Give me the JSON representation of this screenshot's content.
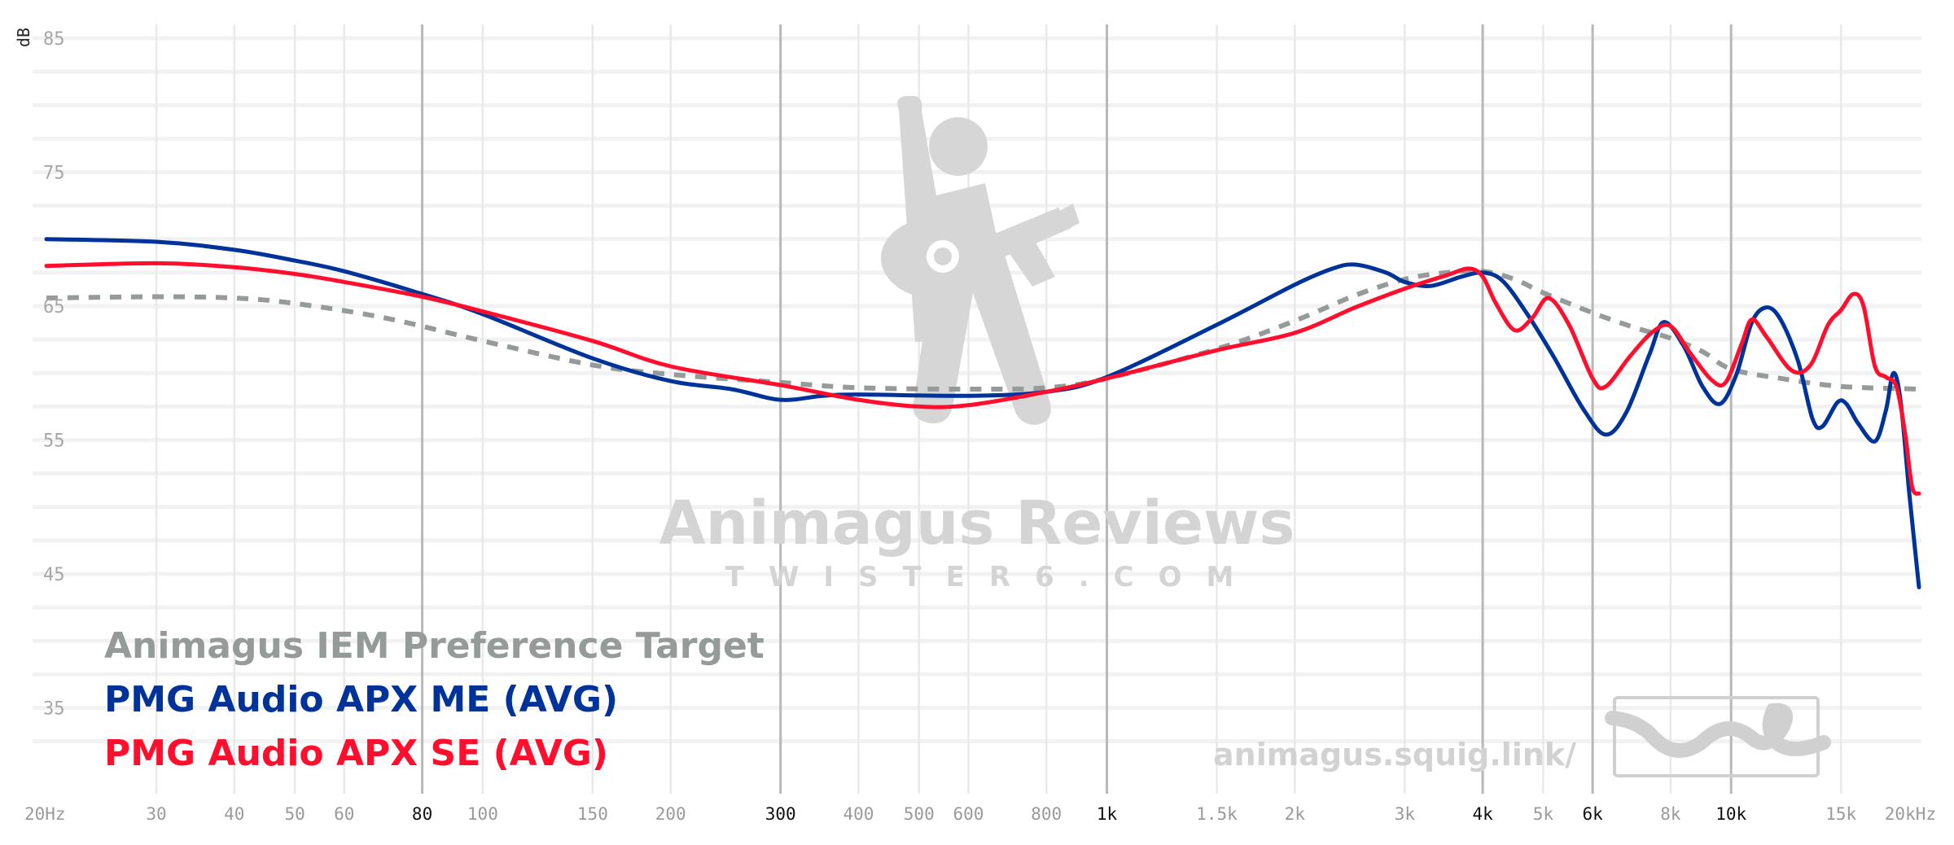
{
  "chart_data": {
    "type": "line",
    "ylabel": "dB",
    "x_scale": "log",
    "xlim": [
      20,
      20000
    ],
    "ylim": [
      30,
      85
    ],
    "y_ticks": [
      85,
      75,
      65,
      55,
      45,
      35
    ],
    "x_ticks": [
      {
        "value": 20,
        "label": "20Hz",
        "major": false
      },
      {
        "value": 30,
        "label": "30",
        "major": false
      },
      {
        "value": 40,
        "label": "40",
        "major": false
      },
      {
        "value": 50,
        "label": "50",
        "major": false
      },
      {
        "value": 60,
        "label": "60",
        "major": false
      },
      {
        "value": 80,
        "label": "80",
        "major": true
      },
      {
        "value": 100,
        "label": "100",
        "major": false
      },
      {
        "value": 150,
        "label": "150",
        "major": false
      },
      {
        "value": 200,
        "label": "200",
        "major": false
      },
      {
        "value": 300,
        "label": "300",
        "major": true
      },
      {
        "value": 400,
        "label": "400",
        "major": false
      },
      {
        "value": 500,
        "label": "500",
        "major": false
      },
      {
        "value": 600,
        "label": "600",
        "major": false
      },
      {
        "value": 800,
        "label": "800",
        "major": false
      },
      {
        "value": 1000,
        "label": "1k",
        "major": true
      },
      {
        "value": 1500,
        "label": "1.5k",
        "major": false
      },
      {
        "value": 2000,
        "label": "2k",
        "major": false
      },
      {
        "value": 3000,
        "label": "3k",
        "major": false
      },
      {
        "value": 4000,
        "label": "4k",
        "major": true
      },
      {
        "value": 5000,
        "label": "5k",
        "major": false
      },
      {
        "value": 6000,
        "label": "6k",
        "major": true
      },
      {
        "value": 8000,
        "label": "8k",
        "major": false
      },
      {
        "value": 10000,
        "label": "10k",
        "major": true
      },
      {
        "value": 15000,
        "label": "15k",
        "major": false
      },
      {
        "value": 20000,
        "label": "20kHz",
        "major": false
      }
    ],
    "series": [
      {
        "name": "Animagus IEM Preference Target",
        "color": "#949b99",
        "dashed": true,
        "points": [
          [
            20,
            65.6
          ],
          [
            30,
            65.7
          ],
          [
            40,
            65.6
          ],
          [
            50,
            65.2
          ],
          [
            70,
            64.1
          ],
          [
            100,
            62.4
          ],
          [
            150,
            60.6
          ],
          [
            200,
            59.9
          ],
          [
            300,
            59.3
          ],
          [
            400,
            58.9
          ],
          [
            600,
            58.8
          ],
          [
            800,
            58.9
          ],
          [
            1000,
            59.6
          ],
          [
            1500,
            61.8
          ],
          [
            2000,
            63.9
          ],
          [
            2500,
            65.8
          ],
          [
            3000,
            67.0
          ],
          [
            3500,
            67.5
          ],
          [
            4000,
            67.6
          ],
          [
            4500,
            67.0
          ],
          [
            5000,
            66.0
          ],
          [
            6000,
            64.5
          ],
          [
            7000,
            63.4
          ],
          [
            8000,
            62.6
          ],
          [
            9000,
            61.6
          ],
          [
            10000,
            60.3
          ],
          [
            12000,
            59.6
          ],
          [
            15000,
            59.0
          ],
          [
            20000,
            58.8
          ]
        ]
      },
      {
        "name": "PMG Audio APX ME (AVG)",
        "color": "#003399",
        "dashed": false,
        "points": [
          [
            20,
            70.0
          ],
          [
            30,
            69.8
          ],
          [
            40,
            69.2
          ],
          [
            50,
            68.4
          ],
          [
            60,
            67.6
          ],
          [
            80,
            65.9
          ],
          [
            100,
            64.4
          ],
          [
            150,
            61.1
          ],
          [
            200,
            59.4
          ],
          [
            250,
            58.8
          ],
          [
            300,
            58.0
          ],
          [
            350,
            58.3
          ],
          [
            400,
            58.4
          ],
          [
            600,
            58.3
          ],
          [
            800,
            58.6
          ],
          [
            1000,
            59.7
          ],
          [
            1500,
            63.6
          ],
          [
            2000,
            66.6
          ],
          [
            2300,
            67.8
          ],
          [
            2500,
            68.1
          ],
          [
            2800,
            67.5
          ],
          [
            3000,
            66.8
          ],
          [
            3300,
            66.5
          ],
          [
            3700,
            67.2
          ],
          [
            4000,
            67.5
          ],
          [
            4300,
            66.9
          ],
          [
            4700,
            64.5
          ],
          [
            5200,
            61.2
          ],
          [
            5800,
            57.3
          ],
          [
            6300,
            55.4
          ],
          [
            6800,
            57.1
          ],
          [
            7400,
            61.4
          ],
          [
            7800,
            63.8
          ],
          [
            8400,
            62.0
          ],
          [
            9000,
            59.0
          ],
          [
            9600,
            57.7
          ],
          [
            10200,
            59.9
          ],
          [
            10800,
            63.8
          ],
          [
            11400,
            64.9
          ],
          [
            12000,
            64.0
          ],
          [
            12800,
            60.9
          ],
          [
            13500,
            56.6
          ],
          [
            14000,
            56.0
          ],
          [
            14800,
            57.8
          ],
          [
            15300,
            57.7
          ],
          [
            16000,
            56.2
          ],
          [
            17000,
            54.9
          ],
          [
            17700,
            57.2
          ],
          [
            18200,
            60.0
          ],
          [
            18700,
            57.8
          ],
          [
            19300,
            51.0
          ],
          [
            20000,
            44.0
          ]
        ]
      },
      {
        "name": "PMG Audio APX SE (AVG)",
        "color": "#ff0f2d",
        "dashed": false,
        "points": [
          [
            20,
            68.0
          ],
          [
            30,
            68.2
          ],
          [
            40,
            67.9
          ],
          [
            50,
            67.4
          ],
          [
            60,
            66.8
          ],
          [
            80,
            65.7
          ],
          [
            100,
            64.6
          ],
          [
            150,
            62.4
          ],
          [
            200,
            60.5
          ],
          [
            300,
            59.1
          ],
          [
            400,
            58.0
          ],
          [
            500,
            57.5
          ],
          [
            600,
            57.6
          ],
          [
            800,
            58.6
          ],
          [
            1000,
            59.6
          ],
          [
            1500,
            61.7
          ],
          [
            2000,
            63.0
          ],
          [
            2500,
            64.9
          ],
          [
            3000,
            66.3
          ],
          [
            3500,
            67.3
          ],
          [
            3800,
            67.8
          ],
          [
            4000,
            67.2
          ],
          [
            4200,
            65.2
          ],
          [
            4500,
            63.2
          ],
          [
            4800,
            64.1
          ],
          [
            5100,
            65.6
          ],
          [
            5500,
            63.6
          ],
          [
            6000,
            59.6
          ],
          [
            6300,
            59.0
          ],
          [
            6900,
            61.3
          ],
          [
            7500,
            63.1
          ],
          [
            8000,
            63.5
          ],
          [
            8600,
            61.5
          ],
          [
            9300,
            59.5
          ],
          [
            9800,
            59.3
          ],
          [
            10400,
            62.2
          ],
          [
            10800,
            64.0
          ],
          [
            11400,
            62.7
          ],
          [
            12500,
            60.2
          ],
          [
            13400,
            60.6
          ],
          [
            14300,
            63.6
          ],
          [
            15000,
            64.7
          ],
          [
            15700,
            65.9
          ],
          [
            16300,
            65.0
          ],
          [
            17000,
            60.5
          ],
          [
            17700,
            59.7
          ],
          [
            18400,
            59.0
          ],
          [
            19000,
            55.5
          ],
          [
            19500,
            51.5
          ],
          [
            20000,
            51.0
          ]
        ]
      }
    ]
  },
  "watermark": {
    "title": "Animagus Reviews",
    "subtitle": "TWISTER6.COM",
    "url": "animagus.squig.link/",
    "mascot_icon": "guitar-player-icon",
    "logo_icon": "squiggle-logo-icon"
  }
}
